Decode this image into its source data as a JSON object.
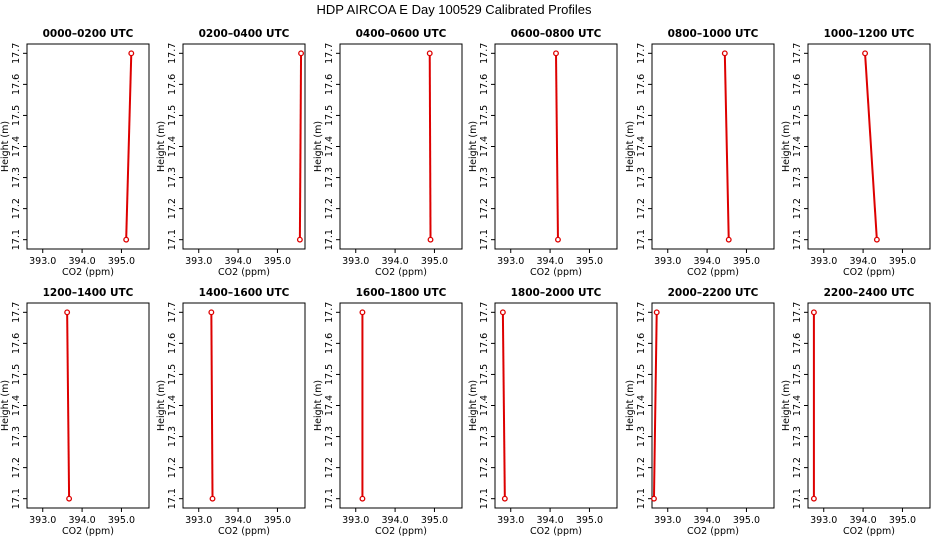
{
  "figure": {
    "title": "HDP AIRCOA E  Day 100529  Calibrated Profiles"
  },
  "colors": {
    "series": "#dd0000",
    "frame": "#000000",
    "background": "#ffffff"
  },
  "chart_data": [
    {
      "type": "line",
      "title": "0000–0200 UTC",
      "xlabel": "CO2 (ppm)",
      "ylabel": "Height (m)",
      "xlim": [
        392.6,
        395.7
      ],
      "ylim": [
        17.07,
        17.73
      ],
      "xticks": [
        "393.0",
        "394.0",
        "395.0"
      ],
      "yticks": [
        "17.1",
        "17.2",
        "17.3",
        "17.4",
        "17.5",
        "17.6",
        "17.7"
      ],
      "series": [
        {
          "x": [
            395.12,
            395.25
          ],
          "y": [
            17.1,
            17.7
          ]
        }
      ]
    },
    {
      "type": "line",
      "title": "0200–0400 UTC",
      "xlabel": "CO2 (ppm)",
      "ylabel": "Height (m)",
      "xlim": [
        392.6,
        395.7
      ],
      "ylim": [
        17.07,
        17.73
      ],
      "xticks": [
        "393.0",
        "394.0",
        "395.0"
      ],
      "yticks": [
        "17.1",
        "17.2",
        "17.3",
        "17.4",
        "17.5",
        "17.6",
        "17.7"
      ],
      "series": [
        {
          "x": [
            395.57,
            395.6
          ],
          "y": [
            17.1,
            17.7
          ]
        }
      ]
    },
    {
      "type": "line",
      "title": "0400–0600 UTC",
      "xlabel": "CO2 (ppm)",
      "ylabel": "Height (m)",
      "xlim": [
        392.6,
        395.7
      ],
      "ylim": [
        17.07,
        17.73
      ],
      "xticks": [
        "393.0",
        "394.0",
        "395.0"
      ],
      "yticks": [
        "17.1",
        "17.2",
        "17.3",
        "17.4",
        "17.5",
        "17.6",
        "17.7"
      ],
      "series": [
        {
          "x": [
            394.9,
            394.88
          ],
          "y": [
            17.1,
            17.7
          ]
        }
      ]
    },
    {
      "type": "line",
      "title": "0600–0800 UTC",
      "xlabel": "CO2 (ppm)",
      "ylabel": "Height (m)",
      "xlim": [
        392.6,
        395.7
      ],
      "ylim": [
        17.07,
        17.73
      ],
      "xticks": [
        "393.0",
        "394.0",
        "395.0"
      ],
      "yticks": [
        "17.1",
        "17.2",
        "17.3",
        "17.4",
        "17.5",
        "17.6",
        "17.7"
      ],
      "series": [
        {
          "x": [
            394.2,
            394.15
          ],
          "y": [
            17.1,
            17.7
          ]
        }
      ]
    },
    {
      "type": "line",
      "title": "0800–1000 UTC",
      "xlabel": "CO2 (ppm)",
      "ylabel": "Height (m)",
      "xlim": [
        392.6,
        395.7
      ],
      "ylim": [
        17.07,
        17.73
      ],
      "xticks": [
        "393.0",
        "394.0",
        "395.0"
      ],
      "yticks": [
        "17.1",
        "17.2",
        "17.3",
        "17.4",
        "17.5",
        "17.6",
        "17.7"
      ],
      "series": [
        {
          "x": [
            394.55,
            394.45
          ],
          "y": [
            17.1,
            17.7
          ]
        }
      ]
    },
    {
      "type": "line",
      "title": "1000–1200 UTC",
      "xlabel": "CO2 (ppm)",
      "ylabel": "Height (m)",
      "xlim": [
        392.6,
        395.7
      ],
      "ylim": [
        17.07,
        17.73
      ],
      "xticks": [
        "393.0",
        "394.0",
        "395.0"
      ],
      "yticks": [
        "17.1",
        "17.2",
        "17.3",
        "17.4",
        "17.5",
        "17.6",
        "17.7"
      ],
      "series": [
        {
          "x": [
            394.35,
            394.05
          ],
          "y": [
            17.1,
            17.7
          ]
        }
      ]
    },
    {
      "type": "line",
      "title": "1200–1400 UTC",
      "xlabel": "CO2 (ppm)",
      "ylabel": "Height (m)",
      "xlim": [
        392.6,
        395.7
      ],
      "ylim": [
        17.07,
        17.73
      ],
      "xticks": [
        "393.0",
        "394.0",
        "395.0"
      ],
      "yticks": [
        "17.1",
        "17.2",
        "17.3",
        "17.4",
        "17.5",
        "17.6",
        "17.7"
      ],
      "series": [
        {
          "x": [
            393.67,
            393.62
          ],
          "y": [
            17.1,
            17.7
          ]
        }
      ]
    },
    {
      "type": "line",
      "title": "1400–1600 UTC",
      "xlabel": "CO2 (ppm)",
      "ylabel": "Height (m)",
      "xlim": [
        392.6,
        395.7
      ],
      "ylim": [
        17.07,
        17.73
      ],
      "xticks": [
        "393.0",
        "394.0",
        "395.0"
      ],
      "yticks": [
        "17.1",
        "17.2",
        "17.3",
        "17.4",
        "17.5",
        "17.6",
        "17.7"
      ],
      "series": [
        {
          "x": [
            393.35,
            393.32
          ],
          "y": [
            17.1,
            17.7
          ]
        }
      ]
    },
    {
      "type": "line",
      "title": "1600–1800 UTC",
      "xlabel": "CO2 (ppm)",
      "ylabel": "Height (m)",
      "xlim": [
        392.6,
        395.7
      ],
      "ylim": [
        17.07,
        17.73
      ],
      "xticks": [
        "393.0",
        "394.0",
        "395.0"
      ],
      "yticks": [
        "17.1",
        "17.2",
        "17.3",
        "17.4",
        "17.5",
        "17.6",
        "17.7"
      ],
      "series": [
        {
          "x": [
            393.17,
            393.17
          ],
          "y": [
            17.1,
            17.7
          ]
        }
      ]
    },
    {
      "type": "line",
      "title": "1800–2000 UTC",
      "xlabel": "CO2 (ppm)",
      "ylabel": "Height (m)",
      "xlim": [
        392.6,
        395.7
      ],
      "ylim": [
        17.07,
        17.73
      ],
      "xticks": [
        "393.0",
        "394.0",
        "395.0"
      ],
      "yticks": [
        "17.1",
        "17.2",
        "17.3",
        "17.4",
        "17.5",
        "17.6",
        "17.7"
      ],
      "series": [
        {
          "x": [
            392.85,
            392.8
          ],
          "y": [
            17.1,
            17.7
          ]
        }
      ]
    },
    {
      "type": "line",
      "title": "2000–2200 UTC",
      "xlabel": "CO2 (ppm)",
      "ylabel": "Height (m)",
      "xlim": [
        392.6,
        395.7
      ],
      "ylim": [
        17.07,
        17.73
      ],
      "xticks": [
        "393.0",
        "394.0",
        "395.0"
      ],
      "yticks": [
        "17.1",
        "17.2",
        "17.3",
        "17.4",
        "17.5",
        "17.6",
        "17.7"
      ],
      "series": [
        {
          "x": [
            392.65,
            392.72
          ],
          "y": [
            17.1,
            17.7
          ]
        }
      ]
    },
    {
      "type": "line",
      "title": "2200–2400 UTC",
      "xlabel": "CO2 (ppm)",
      "ylabel": "Height (m)",
      "xlim": [
        392.6,
        395.7
      ],
      "ylim": [
        17.07,
        17.73
      ],
      "xticks": [
        "393.0",
        "394.0",
        "395.0"
      ],
      "yticks": [
        "17.1",
        "17.2",
        "17.3",
        "17.4",
        "17.5",
        "17.6",
        "17.7"
      ],
      "series": [
        {
          "x": [
            392.75,
            392.75
          ],
          "y": [
            17.1,
            17.7
          ]
        }
      ]
    }
  ]
}
